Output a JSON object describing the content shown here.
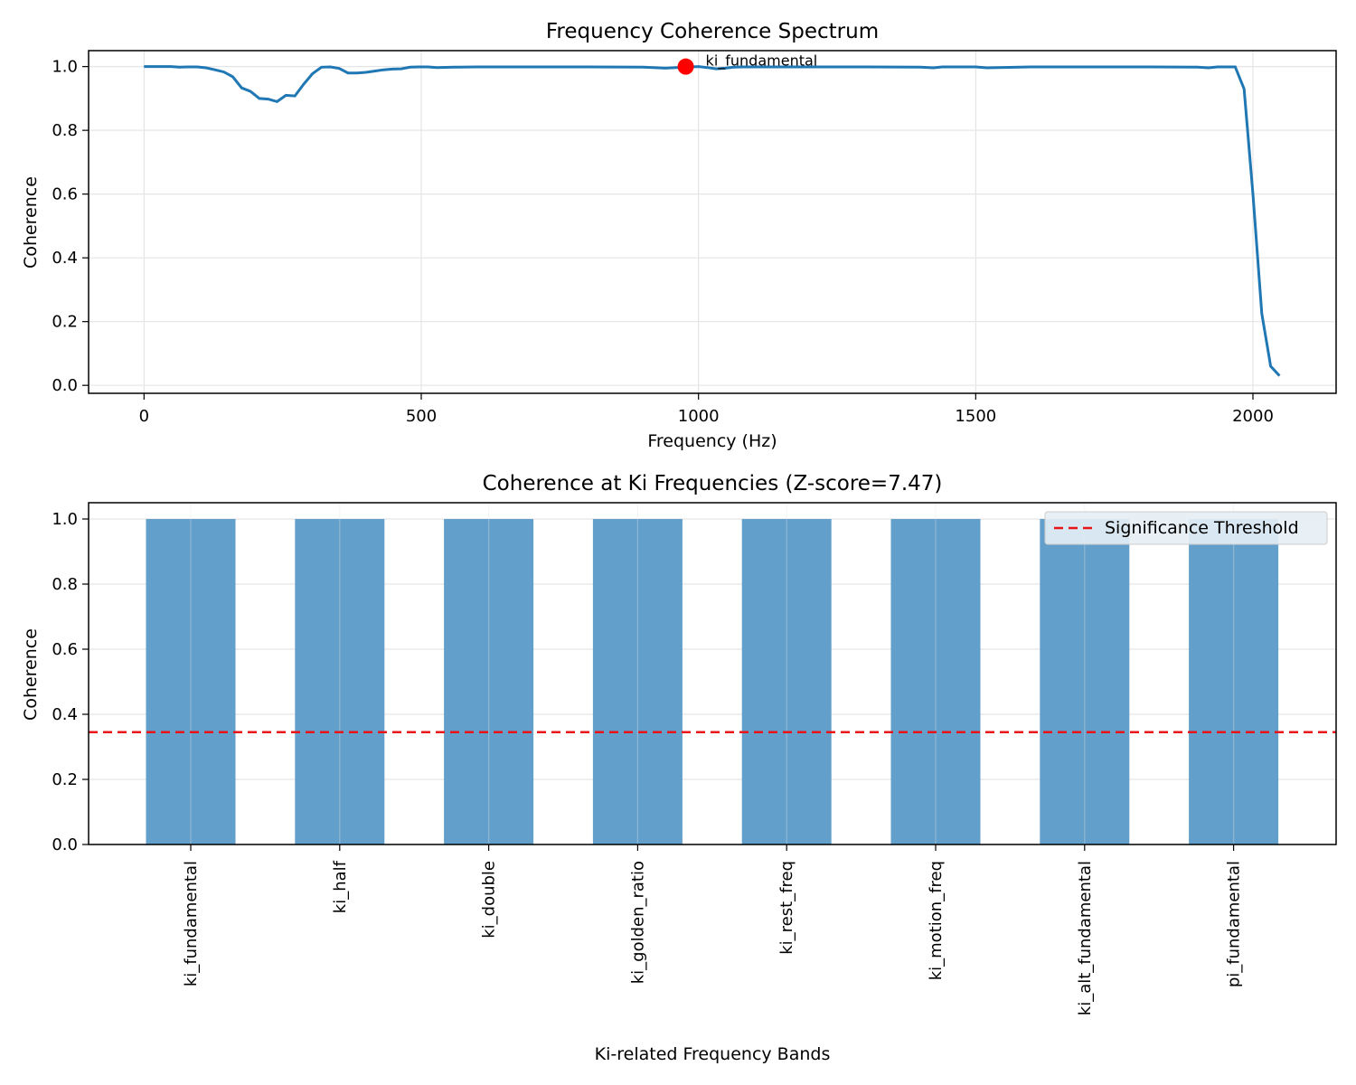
{
  "colors": {
    "line": "#1f77b4",
    "bar": "#629fca",
    "marker": "#ff0000",
    "threshold": "#e8141a",
    "grid": "#e5e5e5",
    "legend_bg": "#e6eef5"
  },
  "chart_data": [
    {
      "type": "line",
      "title": "Frequency Coherence Spectrum",
      "xlabel": "Frequency (Hz)",
      "ylabel": "Coherence",
      "xlim": [
        -100,
        2150
      ],
      "ylim": [
        -0.025,
        1.05
      ],
      "xticks": [
        0,
        500,
        1000,
        1500,
        2000
      ],
      "xtick_labels": [
        "0",
        "500",
        "1000",
        "1500",
        "2000"
      ],
      "yticks": [
        0.0,
        0.2,
        0.4,
        0.6,
        0.8,
        1.0
      ],
      "ytick_labels": [
        "0.0",
        "0.2",
        "0.4",
        "0.6",
        "0.8",
        "1.0"
      ],
      "grid": true,
      "series": [
        {
          "x": [
            0,
            16,
            32,
            48,
            64,
            80,
            96,
            112,
            128,
            144,
            160,
            176,
            192,
            208,
            224,
            240,
            256,
            272,
            288,
            304,
            320,
            336,
            352,
            368,
            384,
            400,
            416,
            432,
            448,
            464,
            480,
            496,
            512,
            528,
            560,
            600,
            700,
            800,
            900,
            940,
            960,
            976,
            1000,
            1016,
            1032,
            1048,
            1064,
            1080,
            1100,
            1200,
            1300,
            1400,
            1424,
            1440,
            1500,
            1520,
            1600,
            1700,
            1800,
            1900,
            1920,
            1936,
            1968,
            1984,
            2000,
            2016,
            2032,
            2048
          ],
          "y": [
            1.0,
            1.0,
            1.0,
            1.0,
            0.998,
            0.999,
            0.999,
            0.996,
            0.99,
            0.983,
            0.968,
            0.933,
            0.922,
            0.9,
            0.898,
            0.89,
            0.91,
            0.908,
            0.945,
            0.978,
            0.998,
            0.999,
            0.994,
            0.98,
            0.98,
            0.982,
            0.986,
            0.99,
            0.992,
            0.993,
            0.998,
            0.999,
            0.999,
            0.997,
            0.998,
            0.999,
            0.999,
            0.999,
            0.998,
            0.995,
            0.997,
            0.998,
            1.0,
            0.997,
            0.993,
            0.995,
            0.998,
            0.999,
            0.999,
            0.999,
            0.999,
            0.998,
            0.996,
            0.999,
            0.999,
            0.996,
            0.999,
            0.999,
            0.999,
            0.998,
            0.996,
            0.999,
            0.999,
            0.93,
            0.6,
            0.225,
            0.06,
            0.03
          ]
        }
      ],
      "annotations": [
        {
          "x": 977,
          "y": 1.0,
          "text": "ki_fundamental"
        }
      ]
    },
    {
      "type": "bar",
      "title": "Coherence at Ki Frequencies (Z-score=7.47)",
      "xlabel": "Ki-related Frequency Bands",
      "ylabel": "Coherence",
      "ylim": [
        0.0,
        1.05
      ],
      "yticks": [
        0.0,
        0.2,
        0.4,
        0.6,
        0.8,
        1.0
      ],
      "ytick_labels": [
        "0.0",
        "0.2",
        "0.4",
        "0.6",
        "0.8",
        "1.0"
      ],
      "grid": true,
      "categories": [
        "ki_fundamental",
        "ki_half",
        "ki_double",
        "ki_golden_ratio",
        "ki_rest_freq",
        "ki_motion_freq",
        "ki_alt_fundamental",
        "pi_fundamental"
      ],
      "values": [
        1.0,
        1.0,
        1.0,
        1.0,
        1.0,
        1.0,
        1.0,
        1.0
      ],
      "threshold": {
        "value": 0.345,
        "label": "Significance Threshold"
      },
      "legend_position": "top-right"
    }
  ]
}
